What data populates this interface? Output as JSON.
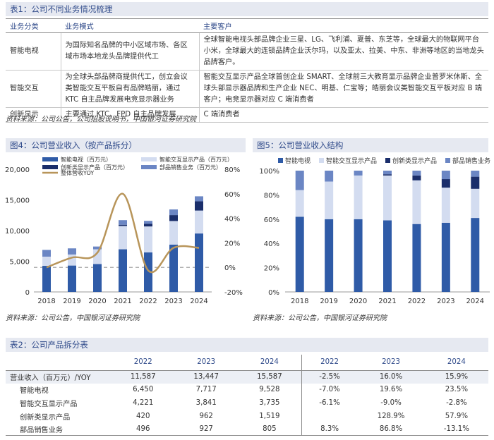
{
  "table1": {
    "title": "表1：公司不同业务情况梳理",
    "headers": [
      "业务分类",
      "业务模式",
      "主要客户"
    ],
    "rows": [
      {
        "cat": "智能电视",
        "mode": "为国际知名品牌的中小区域市场、各区域市场本地龙头品牌提供代工",
        "clients": "全球智能电视头部品牌企业三星、LG、飞利浦、夏普、东芝等，全球最大的物联网平台小米，全球最大的连锁品牌企业沃尔玛，以及亚太、拉美、中东、非洲等地区的当地龙头品牌客户。"
      },
      {
        "cat": "智能交互",
        "mode": "为全球头部品牌商提供代工，创立会议类智能交互平板自有品牌皓丽，通过 KTC 自主品牌发展电竞显示器业务",
        "clients": "智能交互显示产品全球首创企业 SMART、全球前三大教育显示品牌企业普罗米休斯、全球头部显示器品牌和生产企业 NEC、明基、仁宝等；皓丽会议类智能交互平板对应 B 端客户；电竞显示器对应 C 端消费者"
      },
      {
        "cat": "创新显示",
        "mode": "主要通过 KTC、FPD 自主品牌发展",
        "clients": "C 端消费者"
      }
    ],
    "source": "资料来源：公司公告，公司招股说明书，中国银河证券研究院"
  },
  "chart_data": [
    {
      "type": "bar",
      "title": "图4：公司营业收入（按产品拆分）",
      "categories": [
        "2018",
        "2019",
        "2020",
        "2021",
        "2022",
        "2023",
        "2024"
      ],
      "series": [
        {
          "name": "智能电视（百万元）",
          "color": "#2f5ba7",
          "values": [
            4250,
            4300,
            4550,
            6950,
            6450,
            7717,
            9528
          ]
        },
        {
          "name": "智能交互显示产品（百万元）",
          "color": "#d3dcf0",
          "values": [
            1500,
            1800,
            2400,
            3800,
            4221,
            3841,
            3735
          ]
        },
        {
          "name": "创新类显示产品（百万元）",
          "color": "#1a2e6b",
          "values": [
            0,
            0,
            0,
            200,
            420,
            962,
            1519
          ]
        },
        {
          "name": "部品销售业务（百万元）",
          "color": "#6b86c4",
          "values": [
            1100,
            1000,
            450,
            750,
            496,
            927,
            805
          ]
        }
      ],
      "line": {
        "name": "整体营收YOY",
        "color": "#b8955a",
        "values": [
          0,
          8,
          12,
          60,
          -2.5,
          16,
          15.9
        ]
      },
      "ylim": [
        0,
        20000
      ],
      "y2lim": [
        -20,
        80
      ],
      "yticks": [
        "0",
        "5,000",
        "10,000",
        "15,000",
        "20,000"
      ],
      "y2ticks": [
        "-20%",
        "0%",
        "20%",
        "40%",
        "60%",
        "80%"
      ],
      "source": "资料来源：公司公告，中国银河证券研究院"
    },
    {
      "type": "bar",
      "title": "图5：公司营业收入结构",
      "categories": [
        "2018",
        "2019",
        "2020",
        "2021",
        "2022",
        "2023",
        "2024"
      ],
      "series": [
        {
          "name": "智能电视",
          "color": "#2f5ba7",
          "values": [
            62,
            60,
            60,
            59,
            56,
            57,
            61
          ]
        },
        {
          "name": "智能交互显示产品",
          "color": "#d3dcf0",
          "values": [
            22,
            31,
            36,
            37,
            36,
            29,
            24
          ]
        },
        {
          "name": "创新类显示产品",
          "color": "#1a2e6b",
          "values": [
            0,
            0,
            0,
            1,
            4,
            7,
            10
          ]
        },
        {
          "name": "部品销售业务",
          "color": "#6b86c4",
          "values": [
            16,
            9,
            4,
            3,
            4,
            7,
            5
          ]
        }
      ],
      "ylim": [
        0,
        100
      ],
      "yticks": [
        "0%",
        "20%",
        "40%",
        "60%",
        "80%",
        "100%"
      ],
      "source": "资料来源：公司公告，中国银河证券研究院"
    }
  ],
  "table2": {
    "title": "表2：公司产品拆分表",
    "headers": [
      "",
      "2022",
      "2023",
      "2024",
      "2022",
      "2023",
      "2024"
    ],
    "rows": [
      [
        "营业收入（百万元）/YOY",
        "11,587",
        "13,447",
        "15,587",
        "-2.5%",
        "16.0%",
        "15.9%"
      ],
      [
        "智能电视",
        "6,450",
        "7,717",
        "9,528",
        "-7.0%",
        "19.6%",
        "23.5%"
      ],
      [
        "智能交互显示产品",
        "4,221",
        "3,841",
        "3,735",
        "-6.1%",
        "-9.0%",
        "-2.8%"
      ],
      [
        "创新类显示产品",
        "420",
        "962",
        "1,519",
        "",
        "128.9%",
        "57.9%"
      ],
      [
        "部品销售业务",
        "496",
        "927",
        "805",
        "8.3%",
        "86.8%",
        "-13.1%"
      ]
    ]
  }
}
